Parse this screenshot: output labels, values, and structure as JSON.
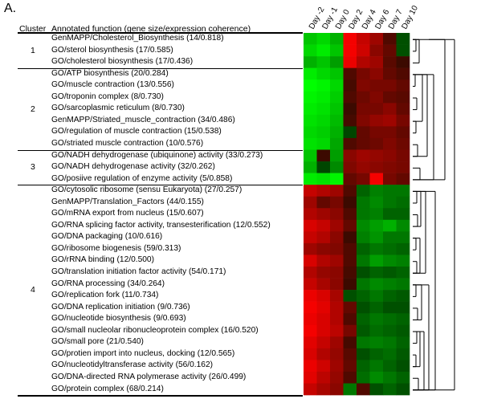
{
  "panel_label": "A.",
  "header": {
    "cluster": "Cluster",
    "function": "Annotated function (gene size/expression coherence)"
  },
  "days": [
    "Day -2",
    "Day -1",
    "Day 0",
    "Day 2",
    "Day 4",
    "Day 6",
    "Day 7",
    "Day 10"
  ],
  "clusters": [
    {
      "number": "1",
      "rows": [
        "GenMAPP/Cholesterol_Biosynthesis (14/0.818)",
        "GO/sterol biosynthesis (17/0.585)",
        "GO/cholesterol biosynthesis (17/0.436)"
      ]
    },
    {
      "number": "2",
      "rows": [
        "GO/ATP biosynthesis (20/0.284)",
        "GO/muscle contraction (13/0.556)",
        "GO/troponin complex (8/0.730)",
        "GO/sarcoplasmic reticulum (8/0.730)",
        "GenMAPP/Striated_muscle_contraction (34/0.486)",
        "GO/regulation of muscle contraction (15/0.538)",
        "GO/striated muscle contraction (10/0.576)"
      ]
    },
    {
      "number": "3",
      "rows": [
        "GO/NADH dehydrogenase (ubiquinone) activity (33/0.273)",
        "GO/NADH dehydrogenase activity (32/0.262)",
        "GO/posiive regulation of enzyme activity (5/0.858)"
      ]
    },
    {
      "number": "4",
      "rows": [
        "GO/cytosolic ribosome (sensu Eukaryota) (27/0.257)",
        "GenMAPP/Translation_Factors (44/0.155)",
        "GO/mRNA export from nucleus (15/0.607)",
        "GO/RNA splicing factor activity, transesterification (12/0.552)",
        "GO/DNA packaging (10/0.616)",
        "GO/ribosome biogenesis (59/0.313)",
        "GO/rRNA binding (12/0.500)",
        "GO/translation initiation factor activity (54/0.171)",
        "GO/RNA processing (34/0.264)",
        "GO/replication fork (11/0.734)",
        "GO/DNA replication initiation (9/0.736)",
        "GO/nucleotide biosynthesis (9/0.693)",
        "GO/small nucleolar ribonucleoprotein complex (16/0.520)",
        "GO/small pore (21/0.540)",
        "GO/protien import into nucleus, docking (12/0.565)",
        "GO/nucleotidyltransferase activity (56/0.162)",
        "GO/DNA-directed RNA polymerase activity (26/0.499)",
        "GO/protein complex (68/0.214)"
      ]
    }
  ],
  "heatmap_values": [
    [
      -0.7,
      -0.8,
      -0.6,
      0.95,
      0.7,
      0.5,
      0.1,
      -0.1
    ],
    [
      -0.8,
      -0.9,
      -0.7,
      0.95,
      0.75,
      0.4,
      0.2,
      -0.1
    ],
    [
      -0.6,
      -0.7,
      -0.5,
      0.9,
      0.6,
      0.5,
      0.15,
      0.0
    ],
    [
      -0.9,
      -0.8,
      -0.7,
      0.1,
      0.3,
      0.4,
      0.2,
      0.1
    ],
    [
      -1.0,
      -0.95,
      -0.8,
      0.05,
      0.35,
      0.3,
      0.3,
      0.2
    ],
    [
      -0.95,
      -0.9,
      -0.75,
      0.1,
      0.25,
      0.35,
      0.2,
      0.15
    ],
    [
      -0.9,
      -0.85,
      -0.7,
      0.0,
      0.3,
      0.3,
      0.4,
      0.2
    ],
    [
      -0.85,
      -0.8,
      -0.65,
      0.05,
      0.35,
      0.45,
      0.5,
      0.3
    ],
    [
      -0.8,
      -0.75,
      -0.6,
      -0.05,
      0.2,
      0.3,
      0.3,
      0.2
    ],
    [
      -0.85,
      -0.8,
      -0.55,
      0.1,
      0.2,
      0.25,
      0.35,
      0.25
    ],
    [
      -0.7,
      0.0,
      -0.5,
      0.4,
      0.5,
      0.45,
      0.4,
      0.3
    ],
    [
      -0.6,
      -0.05,
      -0.4,
      0.35,
      0.45,
      0.4,
      0.35,
      0.3
    ],
    [
      -0.9,
      -0.85,
      -0.95,
      0.2,
      0.3,
      0.95,
      0.3,
      0.2
    ],
    [
      0.7,
      0.6,
      0.5,
      0.1,
      -0.2,
      -0.35,
      -0.3,
      -0.3
    ],
    [
      0.5,
      0.2,
      0.3,
      0.0,
      -0.3,
      -0.4,
      -0.3,
      -0.25
    ],
    [
      0.6,
      0.5,
      0.4,
      0.1,
      -0.3,
      -0.35,
      -0.2,
      -0.2
    ],
    [
      0.8,
      0.7,
      0.5,
      0.2,
      -0.4,
      -0.5,
      -0.6,
      -0.4
    ],
    [
      0.7,
      0.6,
      0.4,
      0.0,
      -0.35,
      -0.45,
      -0.3,
      -0.3
    ],
    [
      0.5,
      0.4,
      0.35,
      0.1,
      -0.2,
      -0.3,
      -0.25,
      -0.2
    ],
    [
      0.8,
      0.6,
      0.5,
      0.1,
      -0.3,
      -0.5,
      -0.4,
      -0.35
    ],
    [
      0.6,
      0.45,
      0.4,
      0.05,
      -0.1,
      -0.2,
      -0.15,
      -0.2
    ],
    [
      0.7,
      0.55,
      0.4,
      0.0,
      -0.3,
      -0.4,
      -0.35,
      -0.3
    ],
    [
      0.9,
      0.8,
      0.55,
      -0.1,
      -0.2,
      -0.3,
      -0.2,
      -0.15
    ],
    [
      0.95,
      0.85,
      0.6,
      0.2,
      -0.1,
      -0.2,
      -0.1,
      -0.1
    ],
    [
      0.9,
      0.8,
      0.6,
      0.1,
      -0.2,
      -0.3,
      -0.25,
      -0.2
    ],
    [
      0.95,
      0.8,
      0.65,
      0.3,
      -0.15,
      -0.25,
      -0.2,
      -0.15
    ],
    [
      0.85,
      0.7,
      0.5,
      0.05,
      -0.3,
      -0.35,
      -0.3,
      -0.2
    ],
    [
      0.8,
      0.6,
      0.45,
      0.15,
      -0.1,
      -0.2,
      -0.25,
      -0.15
    ],
    [
      0.9,
      0.75,
      0.5,
      0.2,
      -0.2,
      -0.3,
      -0.2,
      -0.1
    ],
    [
      0.85,
      0.65,
      0.45,
      0.1,
      -0.25,
      -0.4,
      -0.3,
      -0.2
    ],
    [
      0.7,
      0.55,
      0.4,
      -0.3,
      0.1,
      -0.1,
      -0.2,
      -0.1
    ]
  ]
}
